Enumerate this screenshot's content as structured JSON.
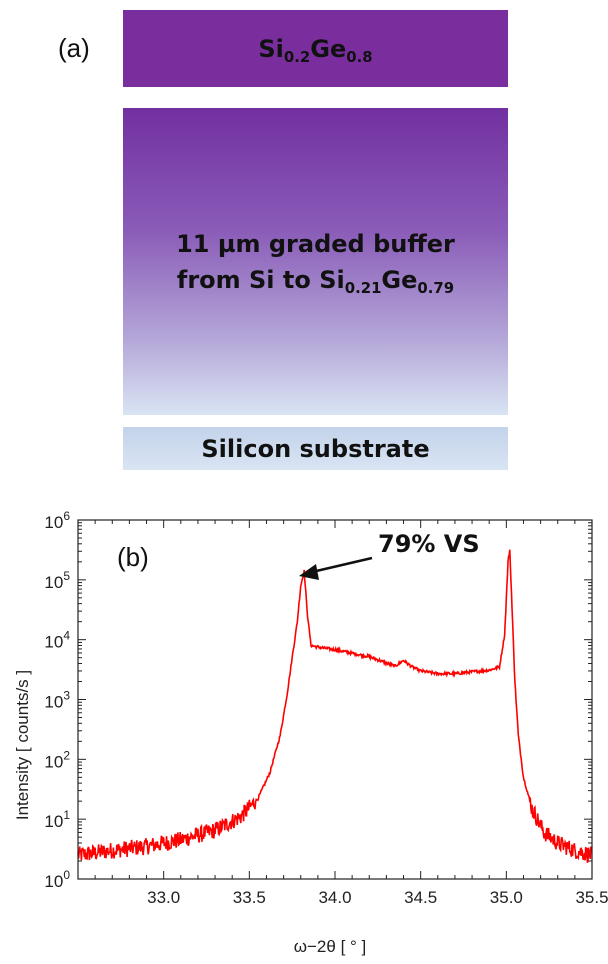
{
  "panel_a": {
    "label": "(a)",
    "top_layer": {
      "base": "Si",
      "sub1": "0.2",
      "mid": "Ge",
      "sub2": "0.8"
    },
    "buffer_layer": {
      "line1": "11 µm graded buffer",
      "line2_prefix": "from Si to ",
      "base": "Si",
      "sub1": "0.21",
      "mid": "Ge",
      "sub2": "0.79"
    },
    "substrate": "Silicon substrate",
    "colors": {
      "top": "#7a2e9e",
      "buffer_top": "#7230a0",
      "buffer_bottom": "#d9e4f3",
      "substrate": "#d0ddef"
    }
  },
  "chart_data": {
    "type": "line",
    "panel_label": "(b)",
    "xlabel": "ω−2θ [ ° ]",
    "ylabel": "Intensity [ counts/s ]",
    "xlim": [
      32.5,
      35.5
    ],
    "ylim": [
      1,
      1000000
    ],
    "yscale": "log",
    "xticks": [
      "33.0",
      "33.5",
      "34.0",
      "34.5",
      "35.0",
      "35.5"
    ],
    "ytick_exponents": [
      "0",
      "1",
      "2",
      "3",
      "4",
      "5",
      "6"
    ],
    "ytick_base": "10",
    "grid": false,
    "line_color": "#ff0000",
    "annotation": {
      "text": "79% VS",
      "x": 33.82,
      "y": 140000
    },
    "series": [
      {
        "x": [
          32.5,
          32.7,
          32.9,
          33.1,
          33.3,
          33.45,
          33.55,
          33.62,
          33.68,
          33.72,
          33.75,
          33.78,
          33.8,
          33.82,
          33.84,
          33.86,
          33.9,
          34.0,
          34.2,
          34.35,
          34.4,
          34.45,
          34.5,
          34.6,
          34.7,
          34.8,
          34.9,
          34.96,
          34.99,
          35.01,
          35.02,
          35.03,
          35.05,
          35.07,
          35.1,
          35.15,
          35.22,
          35.3,
          35.4,
          35.5
        ],
        "y": [
          2.5,
          3,
          3.5,
          4.5,
          6.5,
          11,
          22,
          60,
          250,
          1200,
          5000,
          20000,
          80000,
          140000,
          25000,
          8000,
          7500,
          6800,
          5200,
          3600,
          4500,
          3500,
          3000,
          2700,
          2700,
          2900,
          3100,
          3500,
          12000,
          200000,
          320000,
          60000,
          2000,
          250,
          50,
          15,
          6,
          4,
          3,
          2.5
        ]
      }
    ]
  }
}
